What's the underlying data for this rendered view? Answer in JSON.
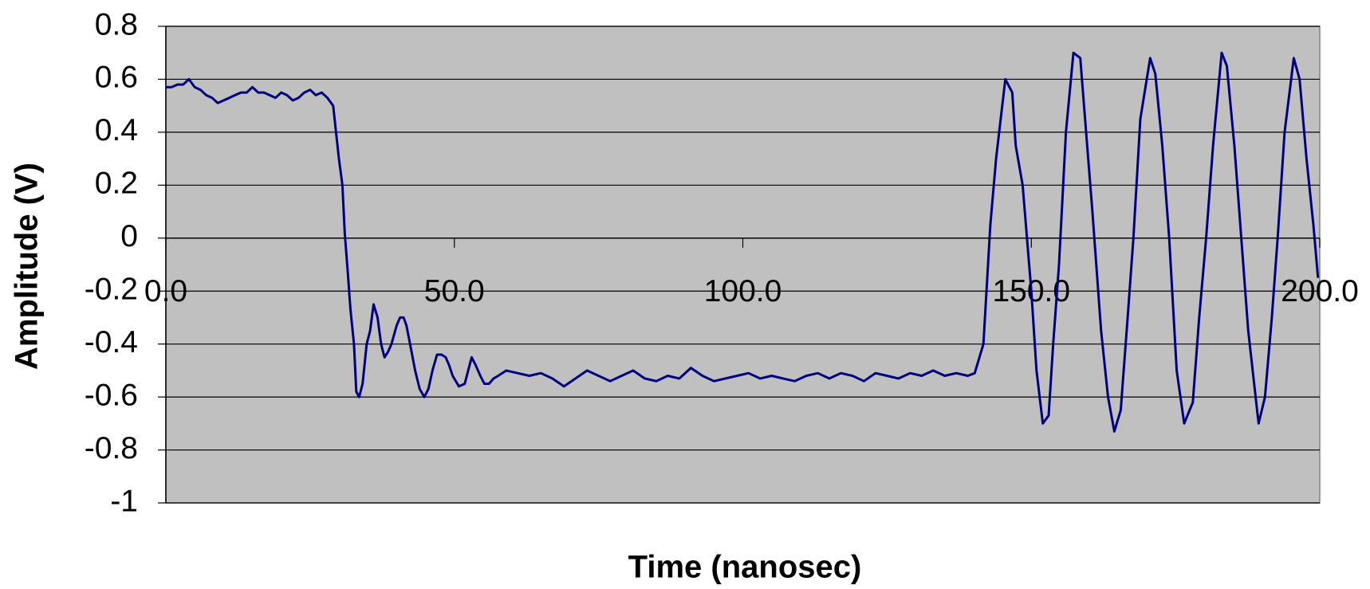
{
  "chart_data": {
    "type": "line",
    "x_label": "Time (nanosec)",
    "y_label": "Amplitude (V)",
    "x": [
      0,
      1,
      2,
      3,
      4,
      5,
      6,
      7,
      8,
      9,
      10,
      11,
      12,
      13,
      14,
      15,
      16,
      17,
      18,
      19,
      20,
      21,
      22,
      23,
      24,
      25,
      26,
      27,
      28,
      29,
      30,
      30.6,
      31,
      31.5,
      32,
      32.6,
      33,
      33.5,
      34.1,
      34.8,
      35.4,
      36,
      36.7,
      37.3,
      37.9,
      38.5,
      39.1,
      40,
      40.6,
      41.2,
      41.7,
      42.5,
      43.2,
      44,
      44.8,
      45.5,
      46.2,
      47,
      47.8,
      48.5,
      49.1,
      49.7,
      50.8,
      51.8,
      52.4,
      53,
      53.7,
      54.5,
      55.2,
      56,
      56.8,
      57.6,
      59,
      61,
      63,
      65,
      67,
      69,
      71,
      73,
      75,
      77,
      79,
      81,
      83,
      85,
      87,
      89,
      91,
      93,
      95,
      97,
      99,
      101,
      103,
      105,
      107,
      109,
      111,
      113,
      115,
      117,
      119,
      121,
      123,
      125,
      127,
      129,
      131,
      133,
      135,
      137,
      139,
      140.2,
      141.7,
      142.9,
      143.9,
      145.5,
      146.7,
      147.3,
      148.5,
      150,
      150.9,
      152,
      153,
      153.8,
      154.8,
      156,
      157.3,
      158.5,
      159.5,
      160.6,
      162.1,
      163.3,
      164.4,
      165.5,
      166.7,
      167.7,
      168.9,
      170.6,
      171.5,
      172.7,
      173.9,
      175.2,
      176.5,
      178,
      179.1,
      180.3,
      181.5,
      183,
      183.9,
      185.2,
      186.4,
      187.6,
      189.4,
      190.5,
      191.7,
      192.7,
      193.9,
      195.5,
      196.5,
      197.7,
      198.9,
      199.7
    ],
    "series": [
      {
        "color": "#000080",
        "values": [
          0.57,
          0.57,
          0.58,
          0.58,
          0.6,
          0.57,
          0.56,
          0.54,
          0.53,
          0.51,
          0.52,
          0.53,
          0.54,
          0.55,
          0.55,
          0.57,
          0.55,
          0.55,
          0.54,
          0.53,
          0.55,
          0.54,
          0.52,
          0.53,
          0.55,
          0.56,
          0.54,
          0.55,
          0.53,
          0.5,
          0.3,
          0.2,
          0.02,
          -0.12,
          -0.27,
          -0.4,
          -0.58,
          -0.6,
          -0.55,
          -0.4,
          -0.35,
          -0.25,
          -0.3,
          -0.4,
          -0.45,
          -0.43,
          -0.4,
          -0.33,
          -0.3,
          -0.3,
          -0.33,
          -0.42,
          -0.5,
          -0.57,
          -0.6,
          -0.57,
          -0.5,
          -0.44,
          -0.44,
          -0.45,
          -0.48,
          -0.52,
          -0.56,
          -0.55,
          -0.5,
          -0.45,
          -0.48,
          -0.52,
          -0.55,
          -0.55,
          -0.53,
          -0.52,
          -0.5,
          -0.51,
          -0.52,
          -0.51,
          -0.53,
          -0.56,
          -0.53,
          -0.5,
          -0.52,
          -0.54,
          -0.52,
          -0.5,
          -0.53,
          -0.54,
          -0.52,
          -0.53,
          -0.49,
          -0.52,
          -0.54,
          -0.53,
          -0.52,
          -0.51,
          -0.53,
          -0.52,
          -0.53,
          -0.54,
          -0.52,
          -0.51,
          -0.53,
          -0.51,
          -0.52,
          -0.54,
          -0.51,
          -0.52,
          -0.53,
          -0.51,
          -0.52,
          -0.5,
          -0.52,
          -0.51,
          -0.52,
          -0.51,
          -0.4,
          0.05,
          0.3,
          0.6,
          0.55,
          0.35,
          0.2,
          -0.2,
          -0.5,
          -0.7,
          -0.67,
          -0.4,
          -0.1,
          0.4,
          0.7,
          0.68,
          0.4,
          0.1,
          -0.35,
          -0.6,
          -0.73,
          -0.65,
          -0.3,
          0,
          0.45,
          0.68,
          0.62,
          0.35,
          0,
          -0.5,
          -0.7,
          -0.62,
          -0.3,
          0,
          0.35,
          0.7,
          0.65,
          0.35,
          0,
          -0.35,
          -0.7,
          -0.6,
          -0.3,
          0,
          0.4,
          0.68,
          0.6,
          0.3,
          0.05,
          -0.15
        ]
      }
    ],
    "xlim": [
      0,
      200
    ],
    "xticks": [
      {
        "value": 0,
        "label": "0.0"
      },
      {
        "value": 50,
        "label": "50.0"
      },
      {
        "value": 100,
        "label": "100.0"
      },
      {
        "value": 150,
        "label": "150.0"
      },
      {
        "value": 200,
        "label": "200.0"
      }
    ],
    "ylim": [
      -1,
      0.8
    ],
    "yticks": [
      0.8,
      0.6,
      0.4,
      0.2,
      0,
      -0.2,
      -0.4,
      -0.6,
      -0.8,
      -1
    ],
    "grid": true,
    "background": "#c0c0c0"
  }
}
